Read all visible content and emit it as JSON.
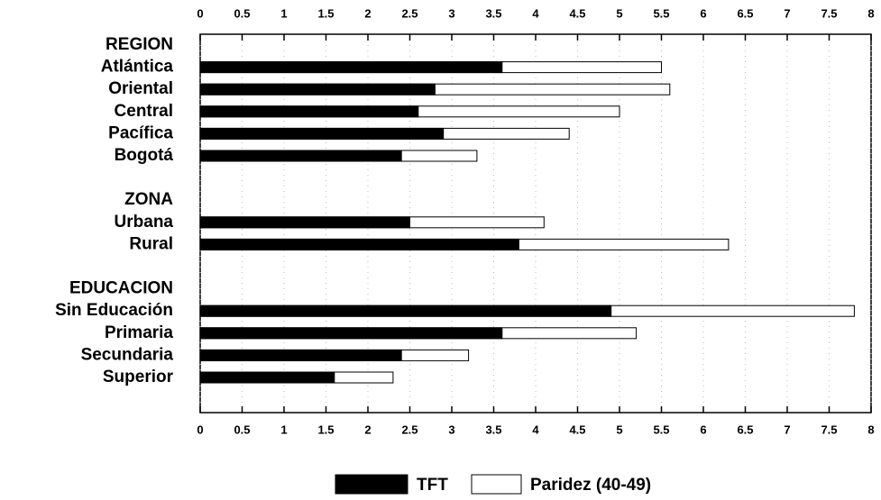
{
  "chart_data": {
    "type": "bar",
    "orientation": "horizontal",
    "overlap": true,
    "groups": [
      "REGION",
      "ZONA",
      "EDUCACION"
    ],
    "categories": [
      [
        "Atlántica",
        "Oriental",
        "Central",
        "Pacífica",
        "Bogotá"
      ],
      [
        "Urbana",
        "Rural"
      ],
      [
        "Sin Educación",
        "Primaria",
        "Secundaria",
        "Superior"
      ]
    ],
    "series": [
      {
        "name": "Paridez (40-49)",
        "color": "#ffffff",
        "values": [
          [
            5.5,
            5.6,
            5.0,
            4.4,
            3.3
          ],
          [
            4.1,
            6.3
          ],
          [
            7.8,
            5.2,
            3.2,
            2.3
          ]
        ]
      },
      {
        "name": "TFT",
        "color": "#000000",
        "values": [
          [
            3.6,
            2.8,
            2.6,
            2.9,
            2.4
          ],
          [
            2.5,
            3.8
          ],
          [
            4.9,
            3.6,
            2.4,
            1.6
          ]
        ]
      }
    ],
    "xlim": [
      0,
      8
    ],
    "xticks": [
      0,
      0.5,
      1,
      1.5,
      2,
      2.5,
      3,
      3.5,
      4,
      4.5,
      5,
      5.5,
      6,
      6.5,
      7,
      7.5,
      8
    ],
    "grid": true
  }
}
